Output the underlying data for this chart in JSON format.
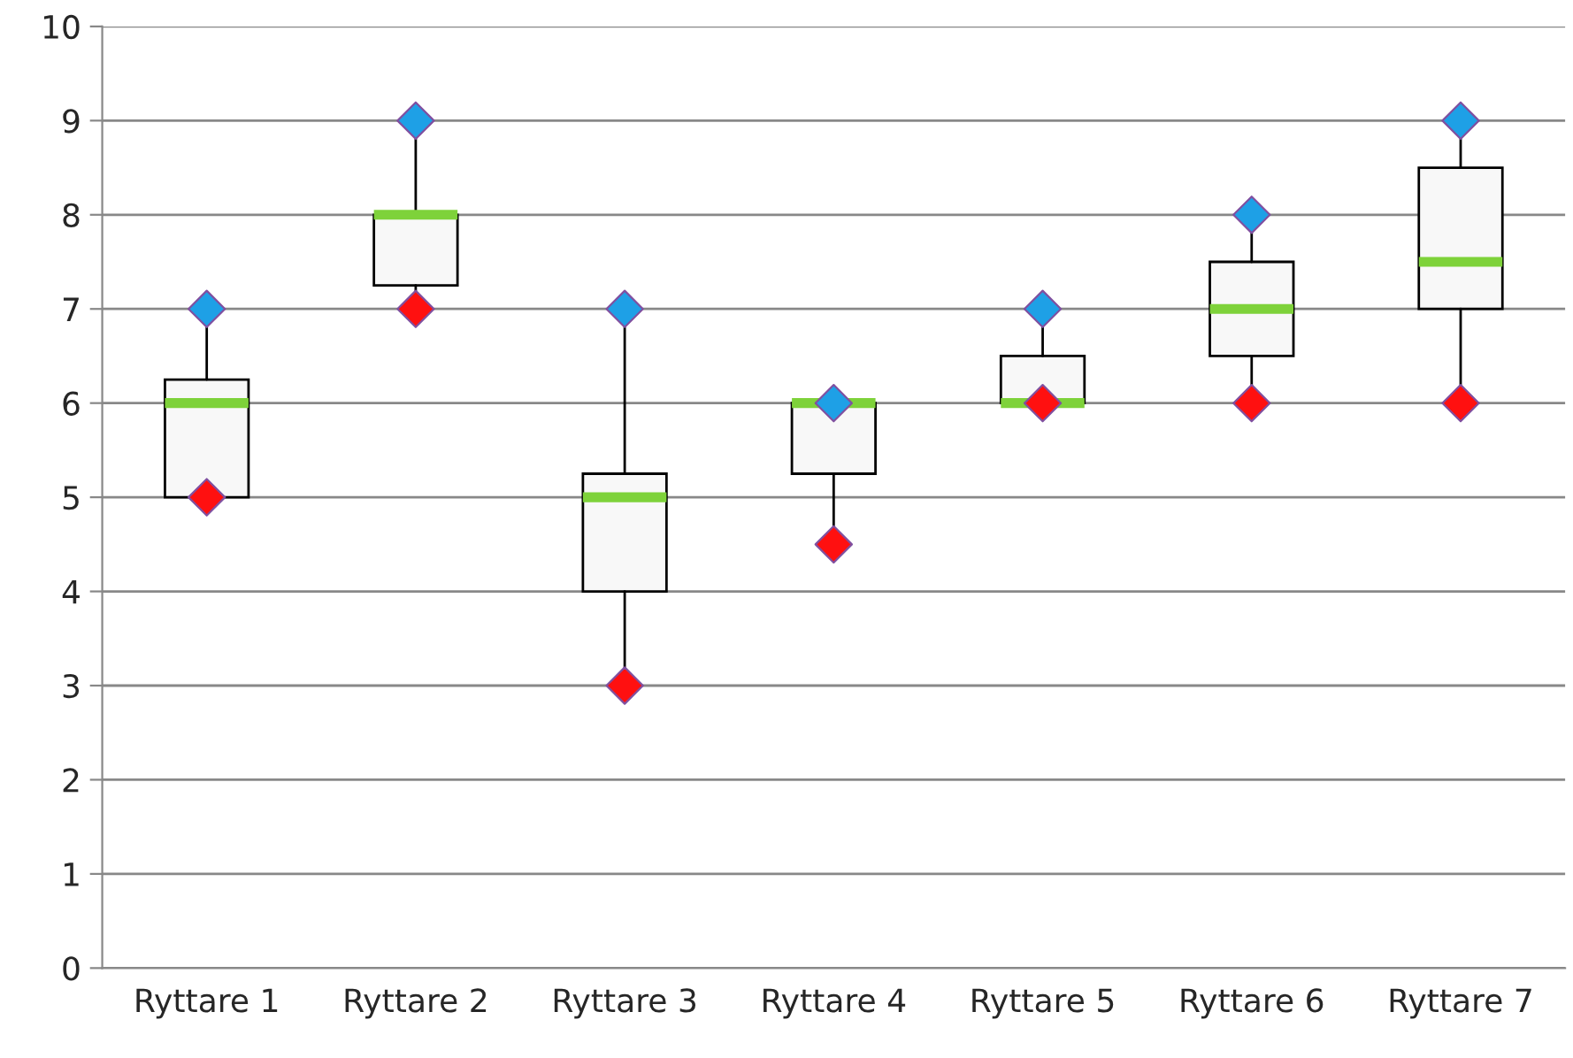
{
  "chart_data": {
    "type": "box",
    "categories": [
      "Ryttare 1",
      "Ryttare 2",
      "Ryttare 3",
      "Ryttare 4",
      "Ryttare 5",
      "Ryttare 6",
      "Ryttare 7"
    ],
    "boxes": [
      {
        "low": 5,
        "q1": 5,
        "median": 6,
        "q3": 6.25,
        "high": 7
      },
      {
        "low": 7,
        "q1": 7.25,
        "median": 8,
        "q3": 8,
        "high": 9
      },
      {
        "low": 3,
        "q1": 4,
        "median": 5,
        "q3": 5.25,
        "high": 7
      },
      {
        "low": 4.5,
        "q1": 5.25,
        "median": 6,
        "q3": 6,
        "high": 6
      },
      {
        "low": 6,
        "q1": 6,
        "median": 6,
        "q3": 6.5,
        "high": 7
      },
      {
        "low": 6,
        "q1": 6.5,
        "median": 7,
        "q3": 7.5,
        "high": 8
      },
      {
        "low": 6,
        "q1": 7,
        "median": 7.5,
        "q3": 8.5,
        "high": 9
      }
    ],
    "series": [
      {
        "type": "scatter",
        "color": "#ff1010",
        "marker": "diamond",
        "x": [
          "Ryttare 1",
          "Ryttare 2",
          "Ryttare 3",
          "Ryttare 4",
          "Ryttare 5",
          "Ryttare 6",
          "Ryttare 7"
        ],
        "values": [
          5,
          7,
          3,
          4.5,
          6,
          6,
          6
        ]
      },
      {
        "type": "scatter",
        "color": "#1ea0e6",
        "marker": "diamond",
        "x": [
          "Ryttare 1",
          "Ryttare 2",
          "Ryttare 3",
          "Ryttare 4",
          "Ryttare 5",
          "Ryttare 6",
          "Ryttare 7"
        ],
        "values": [
          7,
          9,
          7,
          6,
          7,
          8,
          9
        ]
      }
    ],
    "ylim": [
      0,
      10
    ],
    "yticks": [
      0,
      1,
      2,
      3,
      4,
      5,
      6,
      7,
      8,
      9,
      10
    ],
    "grid": "y",
    "legend": false
  }
}
